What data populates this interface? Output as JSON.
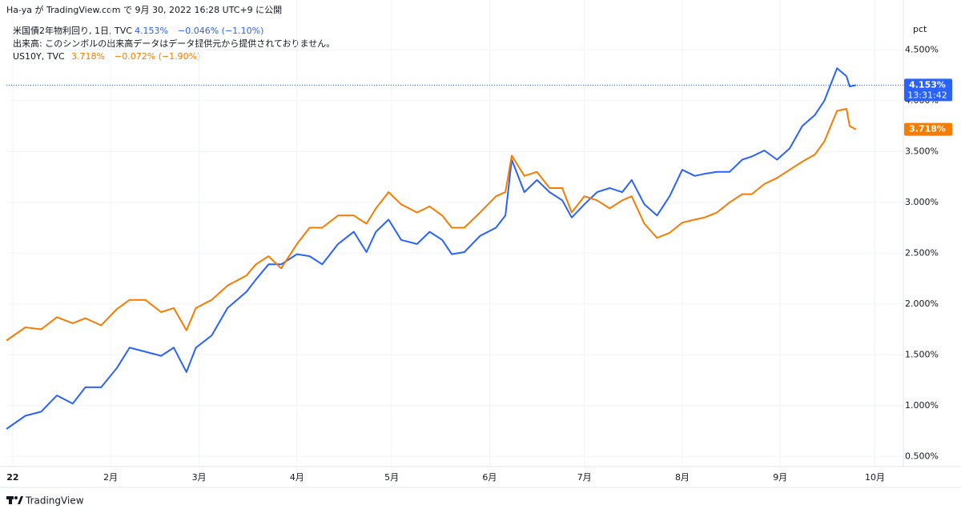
{
  "header": "Ha-ya が TradingView.com で 9月 30, 2022 16:28 UTC+9 に公開",
  "footer": "TradingView",
  "chart_data": {
    "type": "line",
    "volume_note": "出来高: このシンボルの出来高データはデータ提供元から提供されておりません。",
    "y_unit": "pct",
    "countdown": "13:31:42",
    "x": [
      -1,
      5,
      10,
      15,
      20,
      24,
      29,
      34,
      38,
      43,
      48,
      52,
      56,
      59,
      64,
      69,
      75,
      78,
      82,
      86,
      91,
      95,
      99,
      104,
      109,
      113,
      116,
      120,
      124,
      129,
      133,
      137,
      140,
      144,
      149,
      154,
      157,
      159,
      163,
      167,
      171,
      175,
      178,
      182,
      186,
      190,
      194,
      197,
      201,
      205,
      209,
      213,
      217,
      220,
      224,
      228,
      232,
      235,
      239,
      243,
      247,
      251,
      255,
      258,
      262,
      265,
      266,
      268
    ],
    "xlim": [
      -1,
      283
    ],
    "xticks": [
      {
        "value": 1,
        "label": "22"
      },
      {
        "value": 32,
        "label": "2月"
      },
      {
        "value": 60,
        "label": "3月"
      },
      {
        "value": 91,
        "label": "4月"
      },
      {
        "value": 121,
        "label": "5月"
      },
      {
        "value": 152,
        "label": "6月"
      },
      {
        "value": 182,
        "label": "7月"
      },
      {
        "value": 213,
        "label": "8月"
      },
      {
        "value": 244,
        "label": "9月"
      },
      {
        "value": 274,
        "label": "10月"
      }
    ],
    "ylim": [
      0.4,
      4.77
    ],
    "yticks": [
      {
        "value": 0.5,
        "label": "0.500%"
      },
      {
        "value": 1,
        "label": "1.000%"
      },
      {
        "value": 1.5,
        "label": "1.500%"
      },
      {
        "value": 2,
        "label": "2.000%"
      },
      {
        "value": 2.5,
        "label": "2.500%"
      },
      {
        "value": 3,
        "label": "3.000%"
      },
      {
        "value": 3.5,
        "label": "3.500%"
      },
      {
        "value": 4,
        "label": "4.000%"
      },
      {
        "value": 4.5,
        "label": "4.500%"
      }
    ],
    "grid": true,
    "series": [
      {
        "name": "米国債2年物利回り, 1日, TVC",
        "color": "#2962ff",
        "last_label": "4.153%",
        "change": "−0.046% (−1.10%)",
        "values": [
          0.77,
          0.9,
          0.94,
          1.1,
          1.02,
          1.18,
          1.18,
          1.37,
          1.57,
          1.53,
          1.49,
          1.57,
          1.33,
          1.57,
          1.69,
          1.96,
          2.12,
          2.24,
          2.39,
          2.39,
          2.49,
          2.47,
          2.39,
          2.59,
          2.71,
          2.51,
          2.71,
          2.83,
          2.63,
          2.59,
          2.71,
          2.63,
          2.49,
          2.51,
          2.67,
          2.75,
          2.87,
          3.42,
          3.1,
          3.22,
          3.1,
          3.02,
          2.85,
          2.98,
          3.1,
          3.14,
          3.1,
          3.22,
          2.98,
          2.87,
          3.06,
          3.32,
          3.26,
          3.28,
          3.3,
          3.3,
          3.42,
          3.45,
          3.51,
          3.42,
          3.53,
          3.75,
          3.86,
          4.0,
          4.32,
          4.24,
          4.14,
          4.153
        ]
      },
      {
        "name": "US10Y, TVC",
        "color": "#f57c00",
        "last_label": "3.718%",
        "change": "−0.072% (−1.90%)",
        "values": [
          1.64,
          1.77,
          1.75,
          1.87,
          1.81,
          1.86,
          1.79,
          1.95,
          2.04,
          2.04,
          1.92,
          1.96,
          1.74,
          1.96,
          2.04,
          2.18,
          2.28,
          2.39,
          2.47,
          2.35,
          2.59,
          2.75,
          2.75,
          2.87,
          2.87,
          2.79,
          2.94,
          3.1,
          2.98,
          2.9,
          2.96,
          2.87,
          2.75,
          2.75,
          2.9,
          3.06,
          3.1,
          3.46,
          3.26,
          3.3,
          3.14,
          3.14,
          2.9,
          3.06,
          3.02,
          2.94,
          3.02,
          3.06,
          2.79,
          2.65,
          2.7,
          2.8,
          2.83,
          2.85,
          2.9,
          3.0,
          3.08,
          3.08,
          3.18,
          3.24,
          3.32,
          3.4,
          3.47,
          3.6,
          3.9,
          3.92,
          3.75,
          3.718
        ]
      }
    ]
  }
}
